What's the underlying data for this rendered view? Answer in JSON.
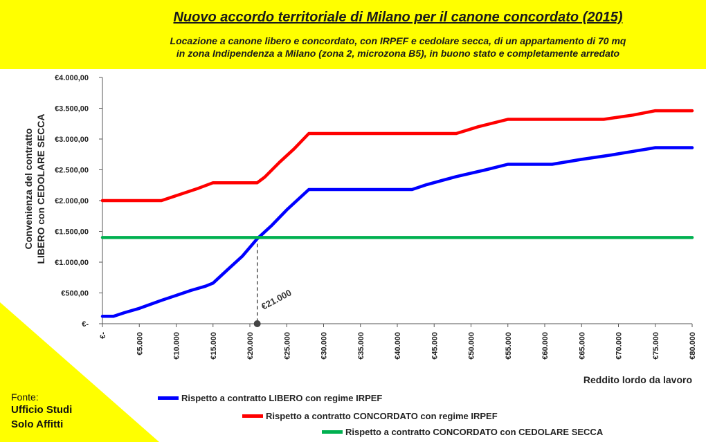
{
  "header": {
    "title": "Nuovo accordo territoriale di Milano per il canone concordato (2015)",
    "subtitle_line1": "Locazione a canone libero e concordato, con IRPEF e cedolare secca, di un appartamento di 70 mq",
    "subtitle_line2": "in zona Indipendenza a Milano (zona 2, microzona B5), in buono stato e completamente arredato"
  },
  "source": {
    "label": "Fonte:",
    "org_line1": "Ufficio Studi",
    "org_line2": "Solo Affitti"
  },
  "colors": {
    "banner": "#ffff00",
    "libero": "#0000ff",
    "concordato": "#ff0000",
    "cedolare": "#00b050"
  },
  "chart_data": {
    "type": "line",
    "ylabel_line1": "Convenienza  del contratto",
    "ylabel_line2": "LIBERO con CEDOLARE SECCA",
    "xlabel": "Reddito lordo da lavoro",
    "xlim": [
      0,
      80000
    ],
    "ylim": [
      0,
      4000
    ],
    "y_ticks": [
      {
        "value": 0,
        "label": "€-"
      },
      {
        "value": 500,
        "label": "€500,00"
      },
      {
        "value": 1000,
        "label": "€1.000,00"
      },
      {
        "value": 1500,
        "label": "€1.500,00"
      },
      {
        "value": 2000,
        "label": "€2.000,00"
      },
      {
        "value": 2500,
        "label": "€2.500,00"
      },
      {
        "value": 3000,
        "label": "€3.000,00"
      },
      {
        "value": 3500,
        "label": "€3.500,00"
      },
      {
        "value": 4000,
        "label": "€4.000,00"
      }
    ],
    "x_ticks": [
      {
        "value": 0,
        "label": "€-"
      },
      {
        "value": 5000,
        "label": "€5.000"
      },
      {
        "value": 10000,
        "label": "€10.000"
      },
      {
        "value": 15000,
        "label": "€15.000"
      },
      {
        "value": 20000,
        "label": "€20.000"
      },
      {
        "value": 25000,
        "label": "€25.000"
      },
      {
        "value": 30000,
        "label": "€30.000"
      },
      {
        "value": 35000,
        "label": "€35.000"
      },
      {
        "value": 40000,
        "label": "€40.000"
      },
      {
        "value": 45000,
        "label": "€45.000"
      },
      {
        "value": 50000,
        "label": "€50.000"
      },
      {
        "value": 55000,
        "label": "€55.000"
      },
      {
        "value": 60000,
        "label": "€60.000"
      },
      {
        "value": 65000,
        "label": "€65.000"
      },
      {
        "value": 70000,
        "label": "€70.000"
      },
      {
        "value": 75000,
        "label": "€75.000"
      },
      {
        "value": 80000,
        "label": "€80.000"
      }
    ],
    "series": [
      {
        "name": "Rispetto a contratto LIBERO con regime IRPEF",
        "color": "#0000ff",
        "points": [
          [
            0,
            120
          ],
          [
            1500,
            120
          ],
          [
            3000,
            180
          ],
          [
            5000,
            250
          ],
          [
            8000,
            380
          ],
          [
            10000,
            460
          ],
          [
            12000,
            540
          ],
          [
            14000,
            610
          ],
          [
            15000,
            660
          ],
          [
            17000,
            880
          ],
          [
            19000,
            1100
          ],
          [
            21000,
            1380
          ],
          [
            23000,
            1600
          ],
          [
            25000,
            1850
          ],
          [
            28000,
            2180
          ],
          [
            31000,
            2180
          ],
          [
            35000,
            2180
          ],
          [
            42000,
            2180
          ],
          [
            44000,
            2260
          ],
          [
            48000,
            2390
          ],
          [
            52000,
            2500
          ],
          [
            55000,
            2590
          ],
          [
            61000,
            2590
          ],
          [
            65000,
            2670
          ],
          [
            69000,
            2740
          ],
          [
            72000,
            2800
          ],
          [
            75000,
            2860
          ],
          [
            80000,
            2860
          ]
        ]
      },
      {
        "name": "Rispetto a contratto CONCORDATO con regime IRPEF",
        "color": "#ff0000",
        "points": [
          [
            0,
            2000
          ],
          [
            8000,
            2000
          ],
          [
            10000,
            2080
          ],
          [
            13000,
            2200
          ],
          [
            15000,
            2290
          ],
          [
            21000,
            2290
          ],
          [
            22000,
            2380
          ],
          [
            24000,
            2620
          ],
          [
            26000,
            2840
          ],
          [
            28000,
            3090
          ],
          [
            35000,
            3090
          ],
          [
            48000,
            3090
          ],
          [
            51000,
            3200
          ],
          [
            55000,
            3320
          ],
          [
            60000,
            3320
          ],
          [
            65000,
            3320
          ],
          [
            68000,
            3320
          ],
          [
            72000,
            3390
          ],
          [
            75000,
            3460
          ],
          [
            80000,
            3460
          ]
        ]
      },
      {
        "name": "Rispetto a contratto CONCORDATO con CEDOLARE SECCA",
        "color": "#00b050",
        "points": [
          [
            0,
            1400
          ],
          [
            80000,
            1400
          ]
        ]
      }
    ],
    "annotation": {
      "label": "€21.000",
      "x": 21000,
      "y": 1400
    },
    "legend_position": "bottom",
    "grid": false
  }
}
